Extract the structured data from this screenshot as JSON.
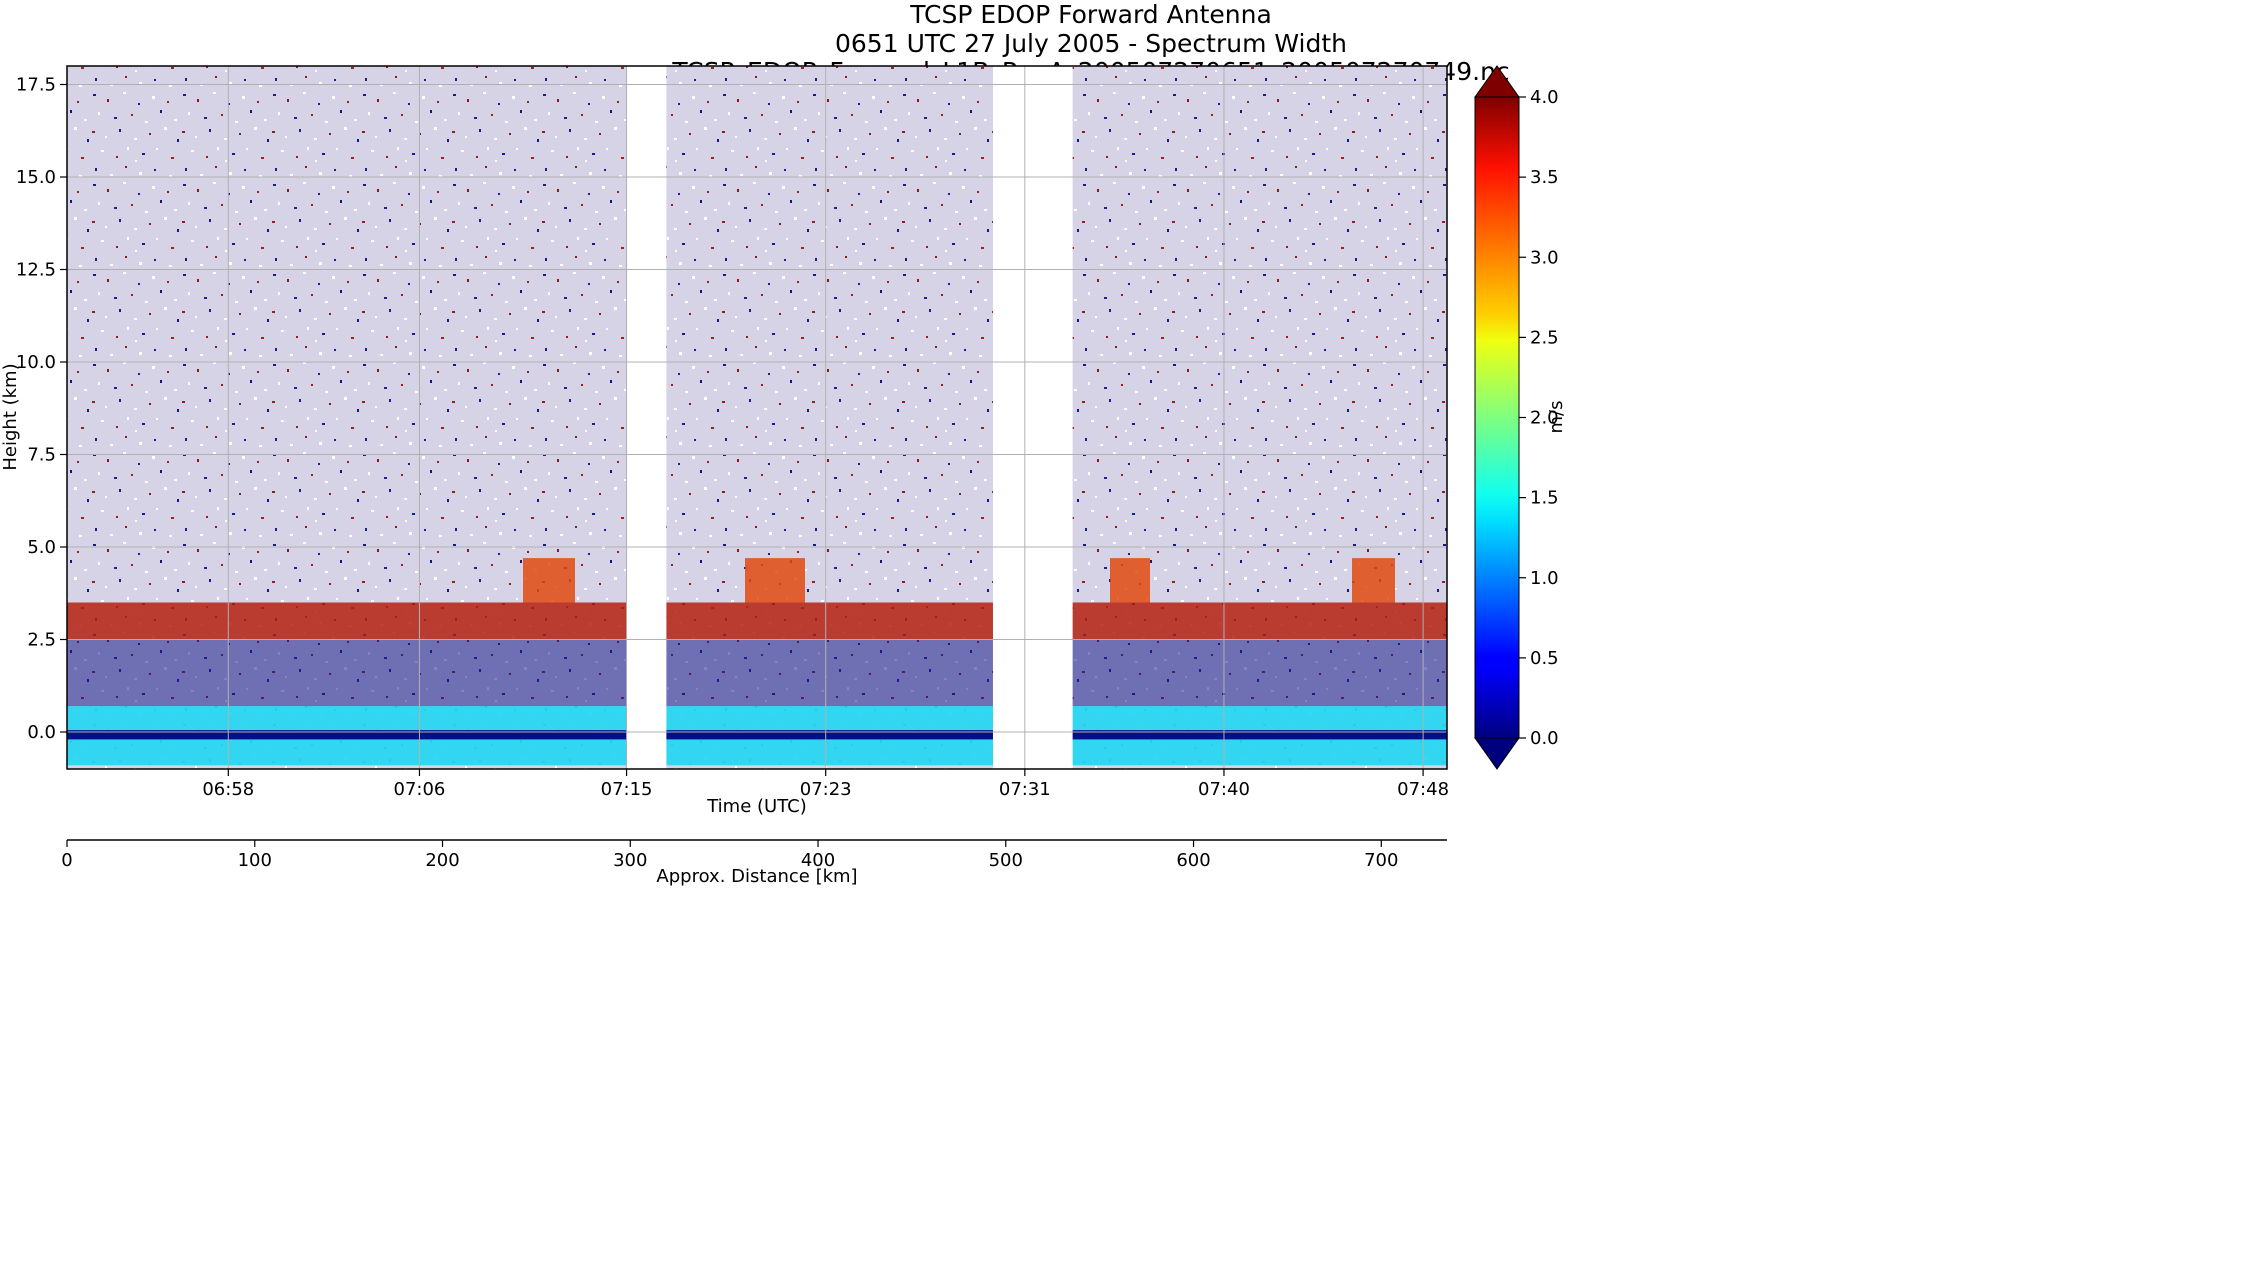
{
  "chart_data": [
    {
      "type": "heatmap",
      "title": [
        "TCSP EDOP Forward Antenna",
        "0651 UTC 27 July 2005 - Spectrum Width",
        "TCSP_EDOP_Forward_L1B_RevA_200507270651_200507270749.nc"
      ],
      "xlabel": "Time (UTC)",
      "ylabel": "Height (km)",
      "x_ticks": [
        "06:58",
        "07:06",
        "07:15",
        "07:23",
        "07:31",
        "07:40",
        "07:48"
      ],
      "y_ticks": [
        "0.0",
        "2.5",
        "5.0",
        "7.5",
        "10.0",
        "12.5",
        "15.0",
        "17.5"
      ],
      "y_tick_values": [
        0,
        2.5,
        5,
        7.5,
        10,
        12.5,
        15,
        17.5
      ],
      "ylim": [
        -1,
        18
      ],
      "grid": true,
      "data_gaps_utc": [
        [
          "07:14:40",
          "07:16:20"
        ],
        [
          "07:30:00",
          "07:33:20"
        ]
      ],
      "colorbar": {
        "label": "m/s",
        "range": [
          0.0,
          4.0
        ],
        "ticks": [
          "0.0",
          "0.5",
          "1.0",
          "1.5",
          "2.0",
          "2.5",
          "3.0",
          "3.5",
          "4.0"
        ],
        "colormap": "jet",
        "extend": "both"
      },
      "features": [
        {
          "name": "surface-echo",
          "height_km": [
            -0.9,
            0.7
          ],
          "width_m_s": [
            0.8,
            1.5
          ]
        },
        {
          "name": "melting-layer-band",
          "height_km": [
            2.5,
            3.5
          ],
          "width_m_s": [
            3.0,
            4.0
          ]
        },
        {
          "name": "convective-tops",
          "height_km": [
            3.5,
            4.7
          ],
          "width_m_s": [
            3.2,
            4.0
          ]
        }
      ]
    },
    {
      "type": "axis",
      "xlabel": "Approx. Distance [km]",
      "x_ticks": [
        "0",
        "100",
        "200",
        "300",
        "400",
        "500",
        "600",
        "700"
      ],
      "x_tick_values": [
        0,
        100,
        200,
        300,
        400,
        500,
        600,
        700
      ],
      "xlim": [
        0,
        735
      ]
    }
  ]
}
